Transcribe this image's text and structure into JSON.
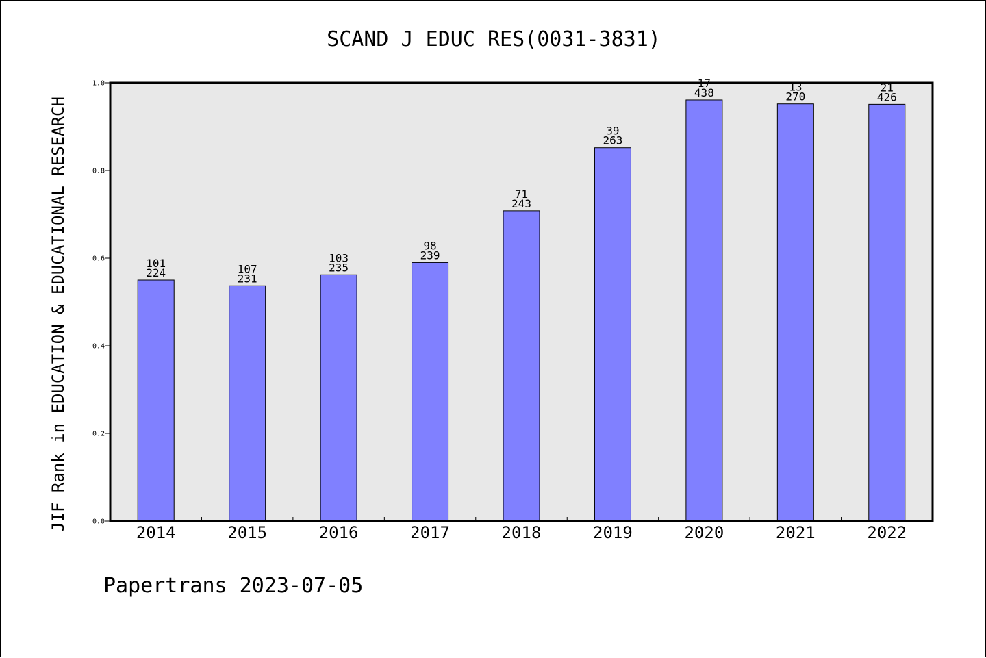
{
  "chart_data": {
    "type": "bar",
    "title": "SCAND J EDUC RES(0031-3831)",
    "ylabel": "JIF Rank in EDUCATION & EDUCATIONAL RESEARCH",
    "xlabel": "",
    "ylim": [
      0,
      1.0
    ],
    "yticks": [
      "0.0",
      "0.2",
      "0.4",
      "0.6",
      "0.8",
      "1.0"
    ],
    "categories": [
      "2014",
      "2015",
      "2016",
      "2017",
      "2018",
      "2019",
      "2020",
      "2021",
      "2022"
    ],
    "values": [
      0.55,
      0.537,
      0.562,
      0.59,
      0.708,
      0.852,
      0.961,
      0.952,
      0.951
    ],
    "rank": [
      "101",
      "107",
      "103",
      "98",
      "71",
      "39",
      "17",
      "13",
      "21"
    ],
    "total": [
      "224",
      "231",
      "235",
      "239",
      "243",
      "263",
      "438",
      "270",
      "426"
    ],
    "bar_color": "#8080ff",
    "plot_background": "#e8e8e8",
    "grid": false
  },
  "footer": "Papertrans 2023-07-05"
}
